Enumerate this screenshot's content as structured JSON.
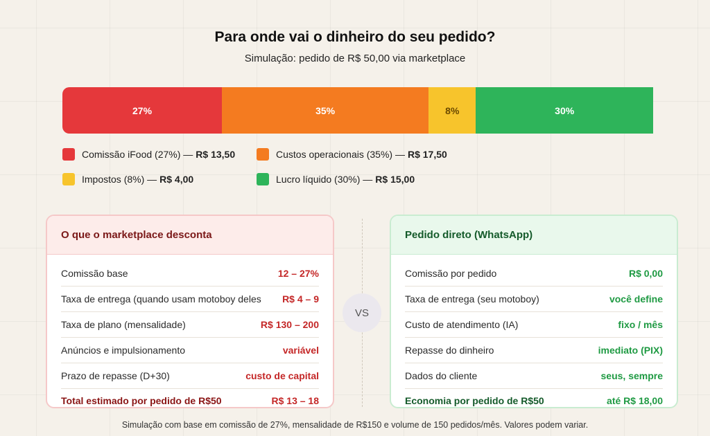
{
  "chart_data": {
    "type": "bar",
    "title": "Para onde vai o dinheiro do seu pedido?",
    "subtitle": "Simulação: pedido de R$ 50,00 via marketplace",
    "orientation": "horizontal-stacked",
    "xlim": [
      0,
      100
    ],
    "series": [
      {
        "name": "Comissão iFood",
        "percent": 27,
        "label": "27%",
        "color": "#e5383b",
        "text_color": "#ffffff",
        "legend_text": "Comissão iFood (27%) —",
        "legend_value": "R$ 13,50"
      },
      {
        "name": "Custos operacionais",
        "percent": 35,
        "label": "35%",
        "color": "#f47b20",
        "text_color": "#ffffff",
        "legend_text": "Custos operacionais (35%) —",
        "legend_value": "R$ 17,50"
      },
      {
        "name": "Impostos",
        "percent": 8,
        "label": "8%",
        "color": "#f7c42c",
        "text_color": "#6b4a00",
        "legend_text": "Impostos (8%) —",
        "legend_value": "R$ 4,00"
      },
      {
        "name": "Lucro líquido",
        "percent": 30,
        "label": "30%",
        "color": "#2eb45a",
        "text_color": "#ffffff",
        "legend_text": "Lucro líquido (30%) —",
        "legend_value": "R$ 15,00"
      }
    ],
    "legend_placement": "bottom-left"
  },
  "comparison": {
    "vs_label": "VS",
    "marketplace": {
      "title": "O que o marketplace desconta",
      "rows": [
        {
          "label": "Comissão base",
          "value": "12 – 27%"
        },
        {
          "label": "Taxa de entrega (quando usam motoboy deles",
          "value": "R$ 4 – 9"
        },
        {
          "label": "Taxa de plano (mensalidade)",
          "value": "R$ 130 – 200"
        },
        {
          "label": "Anúncios e impulsionamento",
          "value": "variável"
        },
        {
          "label": "Prazo de repasse (D+30)",
          "value": "custo de capital"
        }
      ],
      "total": {
        "label": "Total estimado por pedido de R$50",
        "value": "R$ 13 – 18"
      }
    },
    "direct": {
      "title": "Pedido direto (WhatsApp)",
      "rows": [
        {
          "label": "Comissão por pedido",
          "value": "R$ 0,00"
        },
        {
          "label": "Taxa de entrega (seu motoboy)",
          "value": "você define"
        },
        {
          "label": "Custo de atendimento (IA)",
          "value": "fixo / mês"
        },
        {
          "label": "Repasse do dinheiro",
          "value": "imediato (PIX)"
        },
        {
          "label": "Dados do cliente",
          "value": "seus, sempre"
        }
      ],
      "total": {
        "label": "Economia por pedido de R$50",
        "value": "até R$ 18,00"
      }
    }
  },
  "footnote": "Simulação com base em comissão de 27%, mensalidade de R$150 e volume de 150 pedidos/mês. Valores podem variar."
}
